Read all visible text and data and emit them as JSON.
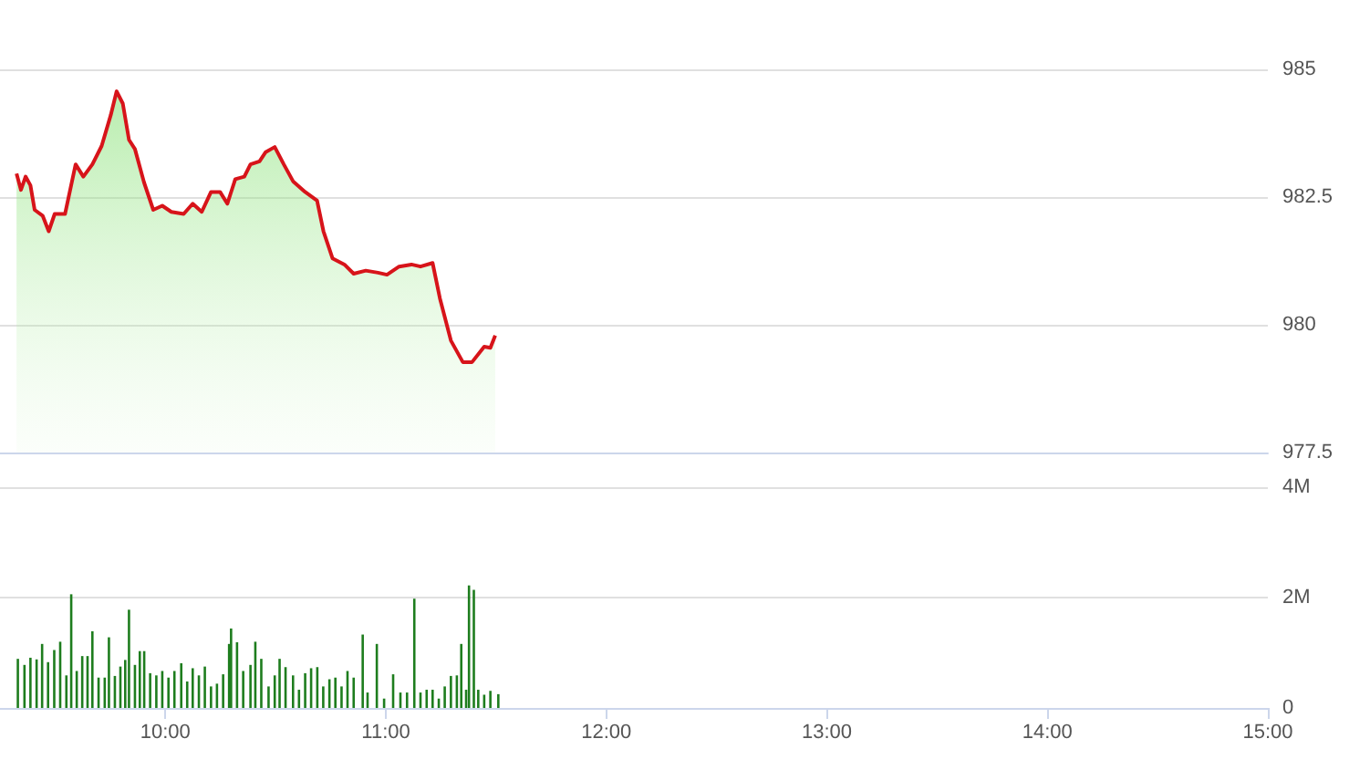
{
  "chart_data": [
    {
      "type": "area",
      "xlim": [
        9.25,
        15
      ],
      "ylim": [
        977.5,
        985
      ],
      "yticks": [
        977.5,
        980,
        982.5,
        985
      ],
      "grid": "y",
      "tick_labels": "y",
      "series": [
        {
          "color": "#d7141a",
          "x": [
            9.325,
            9.345,
            9.366,
            9.388,
            9.407,
            9.444,
            9.471,
            9.498,
            9.545,
            9.593,
            9.628,
            9.669,
            9.711,
            9.752,
            9.779,
            9.807,
            9.835,
            9.862,
            9.903,
            9.945,
            9.986,
            10.027,
            10.083,
            10.124,
            10.165,
            10.207,
            10.248,
            10.281,
            10.317,
            10.358,
            10.386,
            10.427,
            10.455,
            10.496,
            10.537,
            10.579,
            10.634,
            10.688,
            10.717,
            10.758,
            10.812,
            10.854,
            10.909,
            10.964,
            11.005,
            11.06,
            11.116,
            11.157,
            11.212,
            11.245,
            11.295,
            11.349,
            11.391,
            11.446,
            11.474,
            11.496
          ],
          "values": [
            982.96,
            982.64,
            982.9,
            982.73,
            982.25,
            982.13,
            981.83,
            982.17,
            982.17,
            983.14,
            982.9,
            983.14,
            983.5,
            984.1,
            984.57,
            984.33,
            983.62,
            983.44,
            982.79,
            982.25,
            982.33,
            982.21,
            982.17,
            982.37,
            982.21,
            982.6,
            982.6,
            982.37,
            982.85,
            982.9,
            983.14,
            983.2,
            983.38,
            983.48,
            983.14,
            982.81,
            982.6,
            982.43,
            981.83,
            981.3,
            981.18,
            981.0,
            981.06,
            981.02,
            980.98,
            981.14,
            981.18,
            981.14,
            981.21,
            980.52,
            979.69,
            979.27,
            979.27,
            979.57,
            979.55,
            979.79
          ]
        }
      ]
    },
    {
      "type": "bar",
      "xlim": [
        9.25,
        15
      ],
      "xticks": [
        {
          "value": 10,
          "label": "10:00"
        },
        {
          "value": 11,
          "label": "11:00"
        },
        {
          "value": 12,
          "label": "12:00"
        },
        {
          "value": 13,
          "label": "13:00"
        },
        {
          "value": 14,
          "label": "14:00"
        },
        {
          "value": 15,
          "label": "15:00"
        }
      ],
      "ylim": [
        0,
        4
      ],
      "yticks": [
        0,
        {
          "value": 2,
          "label": "2M"
        },
        {
          "value": 4,
          "label": "4M"
        }
      ],
      "grid": "y",
      "series": [
        {
          "color": "#1e7d1e",
          "x": [
            9.331,
            9.361,
            9.388,
            9.416,
            9.441,
            9.468,
            9.496,
            9.523,
            9.551,
            9.573,
            9.598,
            9.623,
            9.647,
            9.669,
            9.697,
            9.725,
            9.744,
            9.771,
            9.796,
            9.818,
            9.835,
            9.862,
            9.884,
            9.904,
            9.931,
            9.959,
            9.986,
            10.014,
            10.041,
            10.072,
            10.099,
            10.124,
            10.152,
            10.179,
            10.207,
            10.234,
            10.262,
            10.289,
            10.298,
            10.325,
            10.353,
            10.386,
            10.408,
            10.435,
            10.468,
            10.496,
            10.518,
            10.545,
            10.579,
            10.606,
            10.634,
            10.661,
            10.689,
            10.716,
            10.744,
            10.771,
            10.799,
            10.826,
            10.854,
            10.895,
            10.917,
            10.959,
            10.992,
            11.033,
            11.066,
            11.096,
            11.129,
            11.157,
            11.185,
            11.212,
            11.24,
            11.267,
            11.295,
            11.322,
            11.342,
            11.364,
            11.377,
            11.399,
            11.419,
            11.446,
            11.474,
            11.51
          ],
          "values": [
            0.89,
            0.78,
            0.91,
            0.88,
            1.16,
            0.83,
            1.05,
            1.2,
            0.59,
            2.06,
            0.67,
            0.94,
            0.94,
            1.39,
            0.55,
            0.55,
            1.28,
            0.58,
            0.75,
            0.87,
            1.78,
            0.78,
            1.03,
            1.03,
            0.63,
            0.59,
            0.67,
            0.55,
            0.67,
            0.81,
            0.48,
            0.72,
            0.59,
            0.75,
            0.39,
            0.44,
            0.61,
            1.16,
            1.44,
            1.19,
            0.67,
            0.78,
            1.2,
            0.89,
            0.39,
            0.59,
            0.89,
            0.74,
            0.59,
            0.33,
            0.63,
            0.72,
            0.74,
            0.39,
            0.52,
            0.55,
            0.39,
            0.67,
            0.55,
            1.33,
            0.28,
            1.16,
            0.17,
            0.61,
            0.28,
            0.28,
            1.98,
            0.28,
            0.33,
            0.33,
            0.17,
            0.39,
            0.58,
            0.59,
            1.16,
            0.33,
            2.22,
            2.14,
            0.33,
            0.24,
            0.31,
            0.25
          ]
        }
      ]
    }
  ]
}
